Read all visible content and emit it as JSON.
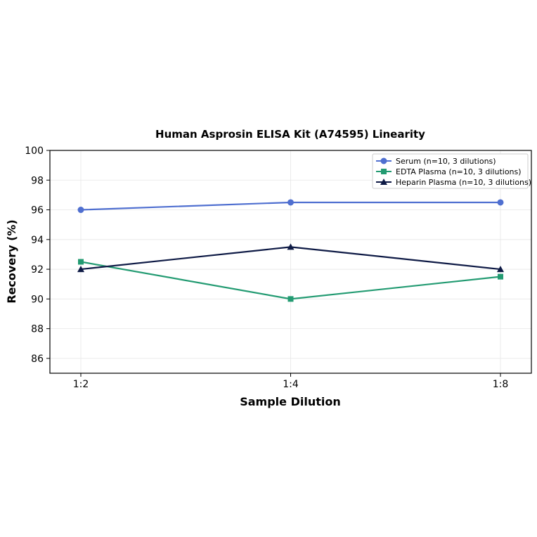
{
  "chart_data": {
    "type": "line",
    "title": "Human Asprosin ELISA Kit (A74595) Linearity",
    "xlabel": "Sample Dilution",
    "ylabel": "Recovery (%)",
    "categories": [
      "1:2",
      "1:4",
      "1:8"
    ],
    "ylim": [
      85,
      100
    ],
    "yticks": [
      86,
      88,
      90,
      92,
      94,
      96,
      98,
      100
    ],
    "grid": true,
    "legend_position": "top-right",
    "series": [
      {
        "name": "Serum (n=10, 3 dilutions)",
        "values": [
          96.0,
          96.5,
          96.5
        ],
        "color": "#4f6fd0",
        "marker": "circle"
      },
      {
        "name": "EDTA Plasma (n=10, 3 dilutions)",
        "values": [
          92.5,
          90.0,
          91.5
        ],
        "color": "#239b72",
        "marker": "square"
      },
      {
        "name": "Heparin Plasma (n=10, 3 dilutions)",
        "values": [
          92.0,
          93.5,
          92.0
        ],
        "color": "#0e1a45",
        "marker": "triangle"
      }
    ]
  }
}
